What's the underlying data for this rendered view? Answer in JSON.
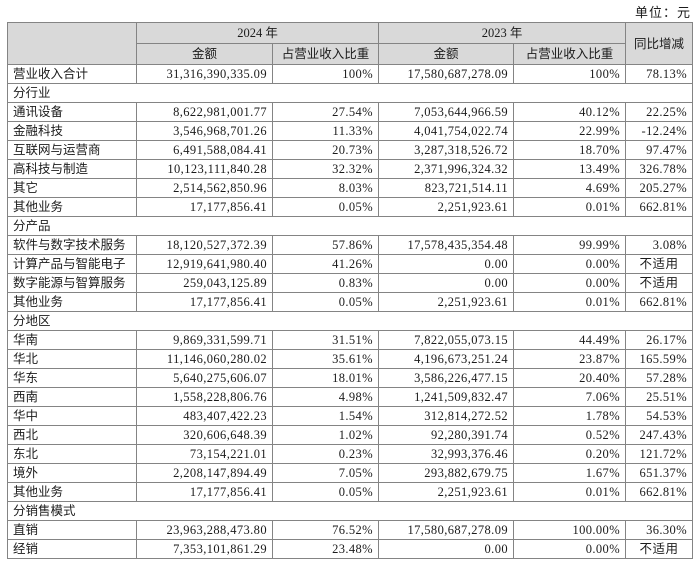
{
  "unit_label": "单位：元",
  "table": {
    "header": {
      "year_2024": "2024 年",
      "year_2023": "2023 年",
      "yoy": "同比增减",
      "amount_2024": "金额",
      "pct_2024": "占营业收入比重",
      "amount_2023": "金额",
      "pct_2023": "占营业收入比重"
    },
    "na_label": "不适用",
    "rows": [
      {
        "type": "data",
        "cells": [
          "营业收入合计",
          "31,316,390,335.09",
          "100%",
          "17,580,687,278.09",
          "100%",
          "78.13%"
        ]
      },
      {
        "type": "section",
        "label": "分行业"
      },
      {
        "type": "data",
        "cells": [
          "通讯设备",
          "8,622,981,001.77",
          "27.54%",
          "7,053,644,966.59",
          "40.12%",
          "22.25%"
        ]
      },
      {
        "type": "data",
        "cells": [
          "金融科技",
          "3,546,968,701.26",
          "11.33%",
          "4,041,754,022.74",
          "22.99%",
          "-12.24%"
        ]
      },
      {
        "type": "data",
        "cells": [
          "互联网与运营商",
          "6,491,588,084.41",
          "20.73%",
          "3,287,318,526.72",
          "18.70%",
          "97.47%"
        ]
      },
      {
        "type": "data",
        "cells": [
          "高科技与制造",
          "10,123,111,840.28",
          "32.32%",
          "2,371,996,324.32",
          "13.49%",
          "326.78%"
        ]
      },
      {
        "type": "data",
        "cells": [
          "其它",
          "2,514,562,850.96",
          "8.03%",
          "823,721,514.11",
          "4.69%",
          "205.27%"
        ]
      },
      {
        "type": "data",
        "cells": [
          "其他业务",
          "17,177,856.41",
          "0.05%",
          "2,251,923.61",
          "0.01%",
          "662.81%"
        ]
      },
      {
        "type": "section",
        "label": "分产品"
      },
      {
        "type": "data",
        "cells": [
          "软件与数字技术服务",
          "18,120,527,372.39",
          "57.86%",
          "17,578,435,354.48",
          "99.99%",
          "3.08%"
        ]
      },
      {
        "type": "data",
        "cells": [
          "计算产品与智能电子",
          "12,919,641,980.40",
          "41.26%",
          "0.00",
          "0.00%",
          "不适用"
        ]
      },
      {
        "type": "data",
        "cells": [
          "数字能源与智算服务",
          "259,043,125.89",
          "0.83%",
          "0.00",
          "0.00%",
          "不适用"
        ]
      },
      {
        "type": "data",
        "cells": [
          "其他业务",
          "17,177,856.41",
          "0.05%",
          "2,251,923.61",
          "0.01%",
          "662.81%"
        ]
      },
      {
        "type": "section",
        "label": "分地区"
      },
      {
        "type": "data",
        "cells": [
          "华南",
          "9,869,331,599.71",
          "31.51%",
          "7,822,055,073.15",
          "44.49%",
          "26.17%"
        ]
      },
      {
        "type": "data",
        "cells": [
          "华北",
          "11,146,060,280.02",
          "35.61%",
          "4,196,673,251.24",
          "23.87%",
          "165.59%"
        ]
      },
      {
        "type": "data",
        "cells": [
          "华东",
          "5,640,275,606.07",
          "18.01%",
          "3,586,226,477.15",
          "20.40%",
          "57.28%"
        ]
      },
      {
        "type": "data",
        "cells": [
          "西南",
          "1,558,228,806.76",
          "4.98%",
          "1,241,509,832.47",
          "7.06%",
          "25.51%"
        ]
      },
      {
        "type": "data",
        "cells": [
          "华中",
          "483,407,422.23",
          "1.54%",
          "312,814,272.52",
          "1.78%",
          "54.53%"
        ]
      },
      {
        "type": "data",
        "cells": [
          "西北",
          "320,606,648.39",
          "1.02%",
          "92,280,391.74",
          "0.52%",
          "247.43%"
        ]
      },
      {
        "type": "data",
        "cells": [
          "东北",
          "73,154,221.01",
          "0.23%",
          "32,993,376.46",
          "0.20%",
          "121.72%"
        ]
      },
      {
        "type": "data",
        "cells": [
          "境外",
          "2,208,147,894.49",
          "7.05%",
          "293,882,679.75",
          "1.67%",
          "651.37%"
        ]
      },
      {
        "type": "data",
        "cells": [
          "其他业务",
          "17,177,856.41",
          "0.05%",
          "2,251,923.61",
          "0.01%",
          "662.81%"
        ]
      },
      {
        "type": "section",
        "label": "分销售模式"
      },
      {
        "type": "data",
        "cells": [
          "直销",
          "23,963,288,473.80",
          "76.52%",
          "17,580,687,278.09",
          "100.00%",
          "36.30%"
        ]
      },
      {
        "type": "data",
        "cells": [
          "经销",
          "7,353,101,861.29",
          "23.48%",
          "0.00",
          "0.00%",
          "不适用"
        ]
      }
    ]
  }
}
